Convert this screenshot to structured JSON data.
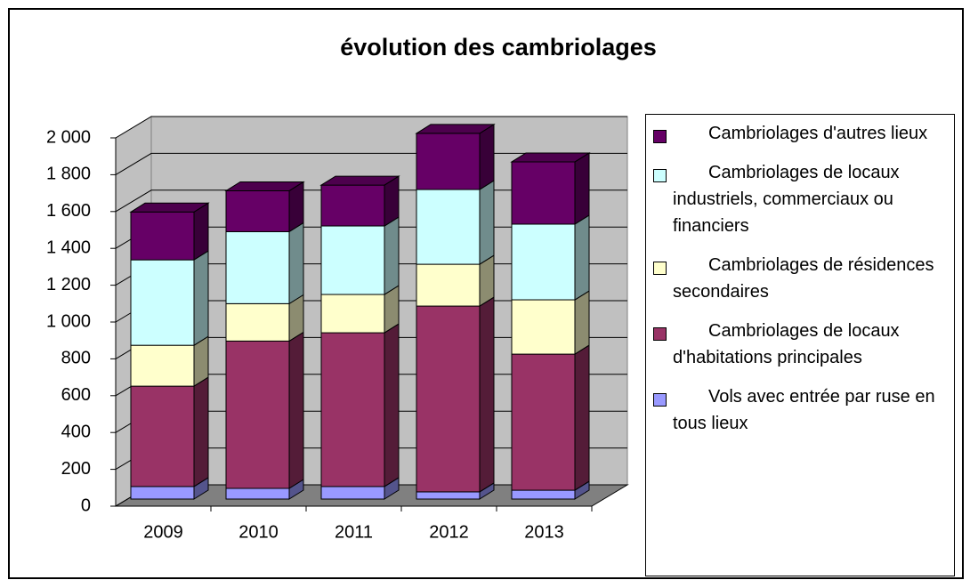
{
  "chart_data": {
    "type": "bar3d_stacked",
    "title": "évolution des cambriolages",
    "categories": [
      "2009",
      "2010",
      "2011",
      "2012",
      "2013"
    ],
    "series": [
      {
        "name": "Vols avec entrée par ruse en tous lieux",
        "color": "#9999ff",
        "values": [
          68,
          58,
          68,
          39,
          48
        ]
      },
      {
        "name": "Cambriolages de locaux d'habitations principales",
        "color": "#993366",
        "values": [
          545,
          800,
          835,
          1009,
          739
        ]
      },
      {
        "name": "Cambriolages de résidences secondaires",
        "color": "#ffffcc",
        "values": [
          222,
          203,
          208,
          227,
          295
        ]
      },
      {
        "name": "Cambriolages de locaux industriels, commerciaux ou financiers",
        "color": "#ccffff",
        "values": [
          464,
          391,
          372,
          406,
          411
        ]
      },
      {
        "name": "Cambriolages d'autres lieux",
        "color": "#660066",
        "values": [
          260,
          222,
          222,
          305,
          338
        ]
      }
    ],
    "ylim": [
      0,
      2000
    ],
    "yticks": [
      0,
      200,
      400,
      600,
      800,
      {
        "value": 1000,
        "label": "1 000"
      },
      {
        "value": 1200,
        "label": "1 200"
      },
      {
        "value": 1400,
        "label": "1 400"
      },
      {
        "value": 1600,
        "label": "1 600"
      },
      {
        "value": 1800,
        "label": "1 800"
      },
      {
        "value": 2000,
        "label": "2 000"
      }
    ],
    "grid": true,
    "legend": "right"
  }
}
